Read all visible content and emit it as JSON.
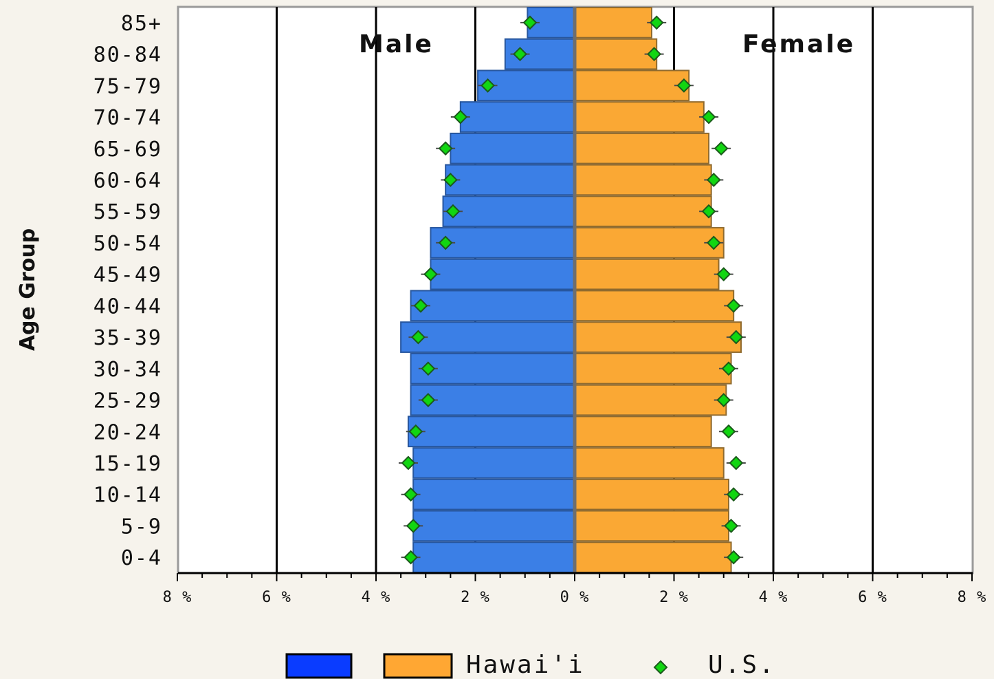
{
  "chart_data": {
    "type": "bar",
    "subtype": "population-pyramid",
    "ylabel": "Age Group",
    "panel_labels": {
      "left": "Male",
      "right": "Female"
    },
    "categories": [
      "85+",
      "80-84",
      "75-79",
      "70-74",
      "65-69",
      "60-64",
      "55-59",
      "50-54",
      "45-49",
      "40-44",
      "35-39",
      "30-34",
      "25-29",
      "20-24",
      "15-19",
      "10-14",
      "5-9",
      "0-4"
    ],
    "x_ticks": [
      "8 %",
      "6 %",
      "4 %",
      "2 %",
      "0 %",
      "2 %",
      "4 %",
      "6 %",
      "8 %"
    ],
    "xlim": [
      -8,
      8
    ],
    "grid": true,
    "series": [
      {
        "name": "",
        "side": "male",
        "color": "#3b7fe6",
        "values": [
          0.95,
          1.4,
          1.95,
          2.3,
          2.5,
          2.6,
          2.65,
          2.9,
          2.9,
          3.3,
          3.5,
          3.3,
          3.3,
          3.35,
          3.25,
          3.25,
          3.25,
          3.25
        ]
      },
      {
        "name": "Hawai'i",
        "side": "female",
        "color": "#faa834",
        "values": [
          1.55,
          1.65,
          2.3,
          2.6,
          2.7,
          2.75,
          2.75,
          3.0,
          2.9,
          3.2,
          3.35,
          3.15,
          3.05,
          2.75,
          3.0,
          3.1,
          3.1,
          3.15
        ]
      },
      {
        "name": "U.S.",
        "type": "scatter",
        "color": "#11d611",
        "male_values": [
          0.9,
          1.1,
          1.75,
          2.3,
          2.6,
          2.5,
          2.45,
          2.6,
          2.9,
          3.1,
          3.15,
          2.95,
          2.95,
          3.2,
          3.35,
          3.3,
          3.25,
          3.3
        ],
        "female_values": [
          1.65,
          1.6,
          2.2,
          2.7,
          2.95,
          2.8,
          2.7,
          2.8,
          3.0,
          3.2,
          3.25,
          3.1,
          3.0,
          3.1,
          3.25,
          3.2,
          3.15,
          3.2
        ]
      }
    ],
    "legend": {
      "position": "bottom",
      "items": [
        {
          "color": "#0a3cff",
          "label": ""
        },
        {
          "color": "#ffa733",
          "label": "Hawai'i"
        },
        {
          "color": "#11d611",
          "label": "U.S.",
          "marker": "diamond"
        }
      ]
    }
  }
}
